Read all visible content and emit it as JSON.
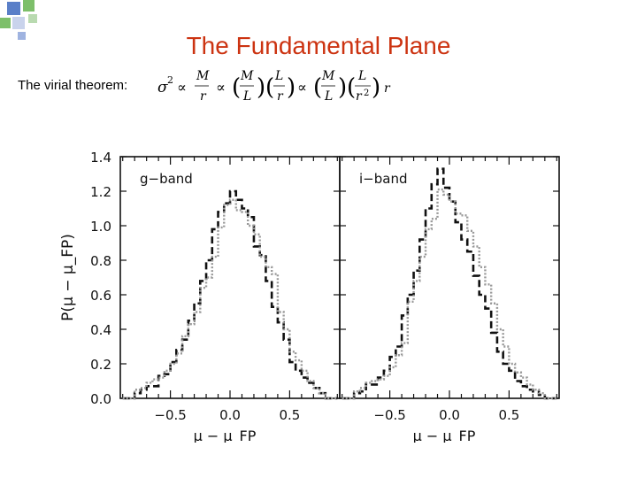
{
  "slide": {
    "title": "The Fundamental Plane",
    "lead": "The virial theorem:",
    "formula": {
      "sigma": "σ",
      "sq": "2",
      "prop": "∝",
      "M": "M",
      "r": "r",
      "L": "L",
      "r2": "r",
      "two": "2",
      "r_end": "r"
    }
  },
  "colors": {
    "title": "#cc3311",
    "bullet_blue": "#3355aa",
    "bullet_green": "#55aa55",
    "series_dashed": "#111111",
    "series_dotted": "#999999"
  },
  "chart_data": {
    "type": "histogram",
    "ylabel": "P(μ − μ_FP)",
    "xlim": [
      -0.92,
      0.92
    ],
    "ylim": [
      0.0,
      1.4
    ],
    "yticks": [
      "0.0",
      "0.2",
      "0.4",
      "0.6",
      "0.8",
      "1.0",
      "1.2",
      "1.4"
    ],
    "ytick_values": [
      0.0,
      0.2,
      0.4,
      0.6,
      0.8,
      1.0,
      1.2,
      1.4
    ],
    "xticks": [
      "−0.5",
      "0.0",
      "0.5"
    ],
    "xtick_values": [
      -0.5,
      0.0,
      0.5
    ],
    "bin_edges": [
      -0.9,
      -0.8,
      -0.75,
      -0.7,
      -0.65,
      -0.6,
      -0.55,
      -0.5,
      -0.45,
      -0.4,
      -0.35,
      -0.3,
      -0.25,
      -0.2,
      -0.15,
      -0.1,
      -0.05,
      0.0,
      0.05,
      0.1,
      0.15,
      0.2,
      0.25,
      0.3,
      0.35,
      0.4,
      0.45,
      0.5,
      0.55,
      0.6,
      0.65,
      0.7,
      0.75,
      0.8,
      0.9
    ],
    "panels": [
      {
        "label": "g−band",
        "xlabel": "μ − μ_FP",
        "series": [
          {
            "style": "dashed",
            "values": [
              0.0,
              0.03,
              0.05,
              0.07,
              0.07,
              0.13,
              0.14,
              0.21,
              0.28,
              0.34,
              0.45,
              0.55,
              0.68,
              0.8,
              0.98,
              1.08,
              1.13,
              1.2,
              1.15,
              1.1,
              1.05,
              0.88,
              0.83,
              0.68,
              0.53,
              0.44,
              0.34,
              0.21,
              0.16,
              0.12,
              0.09,
              0.06,
              0.03,
              0.0
            ]
          },
          {
            "style": "dotted",
            "values": [
              0.0,
              0.05,
              0.06,
              0.09,
              0.11,
              0.12,
              0.16,
              0.2,
              0.26,
              0.36,
              0.43,
              0.5,
              0.64,
              0.7,
              0.82,
              0.99,
              1.12,
              1.15,
              1.09,
              1.08,
              1.0,
              0.95,
              0.82,
              0.76,
              0.72,
              0.5,
              0.4,
              0.27,
              0.22,
              0.16,
              0.1,
              0.06,
              0.03,
              0.0
            ]
          }
        ]
      },
      {
        "label": "i−band",
        "xlabel": "μ − μ_FP",
        "series": [
          {
            "style": "dashed",
            "values": [
              0.0,
              0.03,
              0.04,
              0.08,
              0.08,
              0.12,
              0.16,
              0.24,
              0.3,
              0.48,
              0.6,
              0.74,
              0.92,
              1.1,
              1.24,
              1.33,
              1.22,
              1.14,
              1.02,
              0.92,
              0.85,
              0.71,
              0.6,
              0.52,
              0.38,
              0.27,
              0.2,
              0.16,
              0.1,
              0.07,
              0.05,
              0.04,
              0.02,
              0.0
            ]
          },
          {
            "style": "dotted",
            "values": [
              0.0,
              0.04,
              0.06,
              0.09,
              0.1,
              0.11,
              0.13,
              0.18,
              0.25,
              0.32,
              0.56,
              0.68,
              0.82,
              0.98,
              1.04,
              1.21,
              1.18,
              1.14,
              1.07,
              1.06,
              0.97,
              0.88,
              0.76,
              0.66,
              0.55,
              0.4,
              0.3,
              0.2,
              0.15,
              0.12,
              0.08,
              0.05,
              0.03,
              0.0
            ]
          }
        ]
      }
    ]
  }
}
